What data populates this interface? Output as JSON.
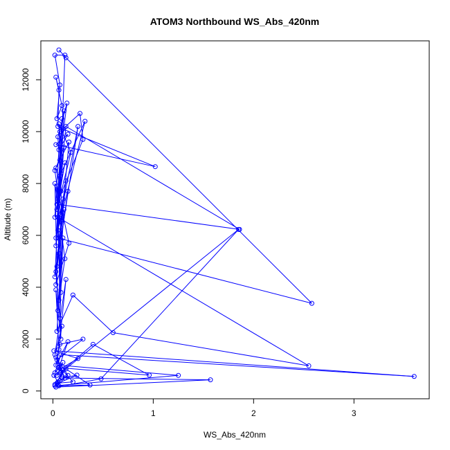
{
  "chart_data": {
    "type": "line",
    "title": "ATOM3 Northbound WS_Abs_420nm",
    "xlabel": "WS_Abs_420nm",
    "ylabel": "Altitude (m)",
    "xlim": [
      -0.12,
      3.75
    ],
    "ylim": [
      -300,
      13500
    ],
    "x_ticks": [
      0,
      1,
      2,
      3
    ],
    "y_ticks": [
      0,
      2000,
      4000,
      6000,
      8000,
      10000,
      12000
    ],
    "x_tick_labels": [
      "0",
      "1",
      "2",
      "3"
    ],
    "y_tick_labels": [
      "0",
      "2000",
      "4000",
      "6000",
      "8000",
      "10000",
      "12000"
    ],
    "grid": false,
    "legend": "none",
    "series": [
      {
        "color": "#0000ff",
        "marker": "open-circle",
        "points": [
          [
            0.06,
            13150
          ],
          [
            0.13,
            12850
          ],
          [
            2.58,
            3380
          ],
          [
            0.05,
            5900
          ],
          [
            0.12,
            12950
          ],
          [
            0.02,
            12950
          ],
          [
            0.07,
            11800
          ],
          [
            0.04,
            10500
          ],
          [
            0.09,
            11000
          ],
          [
            0.03,
            12100
          ],
          [
            0.06,
            11600
          ],
          [
            0.05,
            10200
          ],
          [
            0.1,
            10100
          ],
          [
            1.02,
            8650
          ],
          [
            0.03,
            9500
          ],
          [
            0.15,
            9900
          ],
          [
            0.06,
            9300
          ],
          [
            0.11,
            10800
          ],
          [
            0.08,
            8400
          ],
          [
            0.13,
            10200
          ],
          [
            1.86,
            6230
          ],
          [
            0.04,
            7200
          ],
          [
            0.07,
            8900
          ],
          [
            0.14,
            11100
          ],
          [
            0.05,
            9800
          ],
          [
            0.08,
            7700
          ],
          [
            0.03,
            8600
          ],
          [
            0.16,
            9600
          ],
          [
            0.09,
            6600
          ],
          [
            0.06,
            10300
          ],
          [
            0.18,
            9200
          ],
          [
            0.04,
            7000
          ],
          [
            0.12,
            8800
          ],
          [
            0.02,
            6700
          ],
          [
            0.07,
            10000
          ],
          [
            0.27,
            10700
          ],
          [
            0.3,
            9700
          ],
          [
            0.05,
            7300
          ],
          [
            0.09,
            10500
          ],
          [
            0.03,
            5600
          ],
          [
            0.11,
            9400
          ],
          [
            0.02,
            8500
          ],
          [
            0.08,
            6800
          ],
          [
            0.25,
            10200
          ],
          [
            0.06,
            5300
          ],
          [
            0.15,
            7700
          ],
          [
            0.04,
            4800
          ],
          [
            0.1,
            7400
          ],
          [
            0.03,
            5900
          ],
          [
            0.32,
            10400
          ],
          [
            0.07,
            8300
          ],
          [
            0.02,
            4400
          ],
          [
            0.13,
            8100
          ],
          [
            0.05,
            6200
          ],
          [
            0.08,
            3800
          ],
          [
            0.04,
            7900
          ],
          [
            0.16,
            5700
          ],
          [
            0.03,
            4100
          ],
          [
            0.09,
            6900
          ],
          [
            0.06,
            3500
          ],
          [
            0.12,
            5100
          ],
          [
            0.02,
            8000
          ],
          [
            0.05,
            3100
          ],
          [
            0.11,
            7000
          ],
          [
            0.03,
            4600
          ],
          [
            0.07,
            2800
          ],
          [
            0.1,
            5900
          ],
          [
            0.04,
            2300
          ],
          [
            0.2,
            3700
          ],
          [
            0.6,
            2250
          ],
          [
            2.55,
            970
          ],
          [
            0.05,
            6700
          ],
          [
            0.08,
            2000
          ],
          [
            0.03,
            3900
          ],
          [
            0.06,
            1600
          ],
          [
            0.13,
            4300
          ],
          [
            0.02,
            1400
          ],
          [
            0.09,
            2500
          ],
          [
            0.04,
            1200
          ],
          [
            0.3,
            2000
          ],
          [
            0.07,
            1800
          ],
          [
            0.03,
            1000
          ],
          [
            0.15,
            1900
          ],
          [
            0.05,
            800
          ],
          [
            0.25,
            1250
          ],
          [
            0.01,
            1550
          ],
          [
            3.6,
            560
          ],
          [
            0.08,
            1400
          ],
          [
            0.02,
            700
          ],
          [
            0.1,
            1100
          ],
          [
            0.04,
            600
          ],
          [
            0.4,
            1800
          ],
          [
            0.96,
            610
          ],
          [
            0.06,
            900
          ],
          [
            0.12,
            500
          ],
          [
            0.03,
            1300
          ],
          [
            0.15,
            600
          ],
          [
            0.07,
            400
          ],
          [
            0.02,
            200
          ],
          [
            1.25,
            600
          ],
          [
            0.05,
            1000
          ],
          [
            0.2,
            350
          ],
          [
            0.04,
            300
          ],
          [
            0.1,
            800
          ],
          [
            0.06,
            200
          ],
          [
            0.37,
            230
          ],
          [
            0.13,
            850
          ],
          [
            0.02,
            250
          ],
          [
            0.24,
            610
          ],
          [
            0.09,
            500
          ],
          [
            1.57,
            430
          ],
          [
            0.03,
            150
          ],
          [
            0.48,
            470
          ],
          [
            1.85,
            6230
          ],
          [
            0.08,
            700
          ],
          [
            0.05,
            350
          ],
          [
            0.01,
            600
          ]
        ]
      }
    ]
  }
}
